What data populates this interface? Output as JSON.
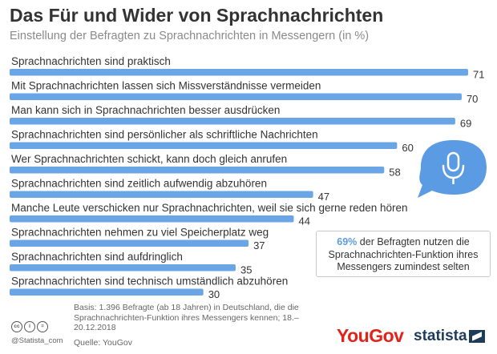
{
  "header": {
    "title": "Das Für und Wider von Sprachnachrichten",
    "subtitle": "Einstellung der Befragten zu Sprachnachrichten in Messengern (in %)"
  },
  "chart_data": {
    "type": "bar",
    "orientation": "horizontal",
    "categories": [
      "Sprachnachrichten sind praktisch",
      "Mit Sprachnachrichten lassen sich Missverständnisse vermeiden",
      "Man kann sich in Sprachnachrichten besser ausdrücken",
      "Sprachnachrichten sind persönlicher als schriftliche Nachrichten",
      "Wer Sprachnachrichten schickt, kann doch gleich anrufen",
      "Sprachnachrichten sind zeitlich aufwendig abzuhören",
      "Manche Leute verschicken nur Sprachnachrichten, weil sie sich gerne reden hören",
      "Sprachnachrichten nehmen zu viel Speicherplatz weg",
      "Sprachnachrichten sind aufdringlich",
      "Sprachnachrichten sind technisch umständlich abzuhören"
    ],
    "values": [
      71,
      70,
      69,
      60,
      58,
      47,
      44,
      37,
      35,
      30
    ],
    "xlim": [
      0,
      71
    ],
    "bar_color": "#6aa5e6",
    "grid": false
  },
  "callout": {
    "percent": "69%",
    "text": "der Befragten nutzen die Sprachnachrichten-Funktion ihres Messengers zumindest selten"
  },
  "icon": {
    "name": "microphone-speech-bubble-icon",
    "color": "#5b9be3"
  },
  "footer": {
    "basis": "Basis: 1.396 Befragte (ab 18 Jahren) in Deutschland, die die Sprachnachrichten-Funktion ihres Messengers kennen; 18.–20.12.2018",
    "source": "Quelle: YouGov",
    "handle": "@Statista_com",
    "cc_labels": [
      "cc",
      "i",
      "="
    ],
    "yougov_logo": "YouGov",
    "statista_logo": "statista"
  }
}
